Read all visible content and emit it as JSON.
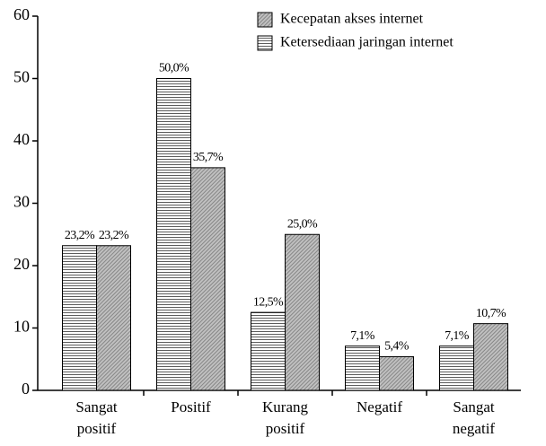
{
  "chart_data": {
    "type": "bar",
    "categories": [
      "Sangat positif",
      "Positif",
      "Kurang positif",
      "Negatif",
      "Sangat negatif"
    ],
    "series": [
      {
        "name": "Ketersediaan jaringan internet",
        "color": "#ffffff",
        "pattern": "horizontal",
        "values": [
          23.2,
          50.0,
          12.5,
          7.1,
          7.1
        ],
        "value_labels": [
          "23,2%",
          "50,0%",
          "12,5%",
          "7,1%",
          "7,1%"
        ]
      },
      {
        "name": "Kecepatan akses internet",
        "color": "#c0c0c0",
        "pattern": "diagonal",
        "values": [
          23.2,
          35.7,
          25.0,
          5.4,
          10.7
        ],
        "value_labels": [
          "23,2%",
          "35,7%",
          "25,0%",
          "5,4%",
          "10,7%"
        ]
      }
    ],
    "legend_order": [
      1,
      0
    ],
    "legend": "top-right",
    "ylim": [
      0,
      60
    ],
    "yticks": [
      0,
      10,
      20,
      30,
      40,
      50,
      60
    ],
    "grid": false
  }
}
